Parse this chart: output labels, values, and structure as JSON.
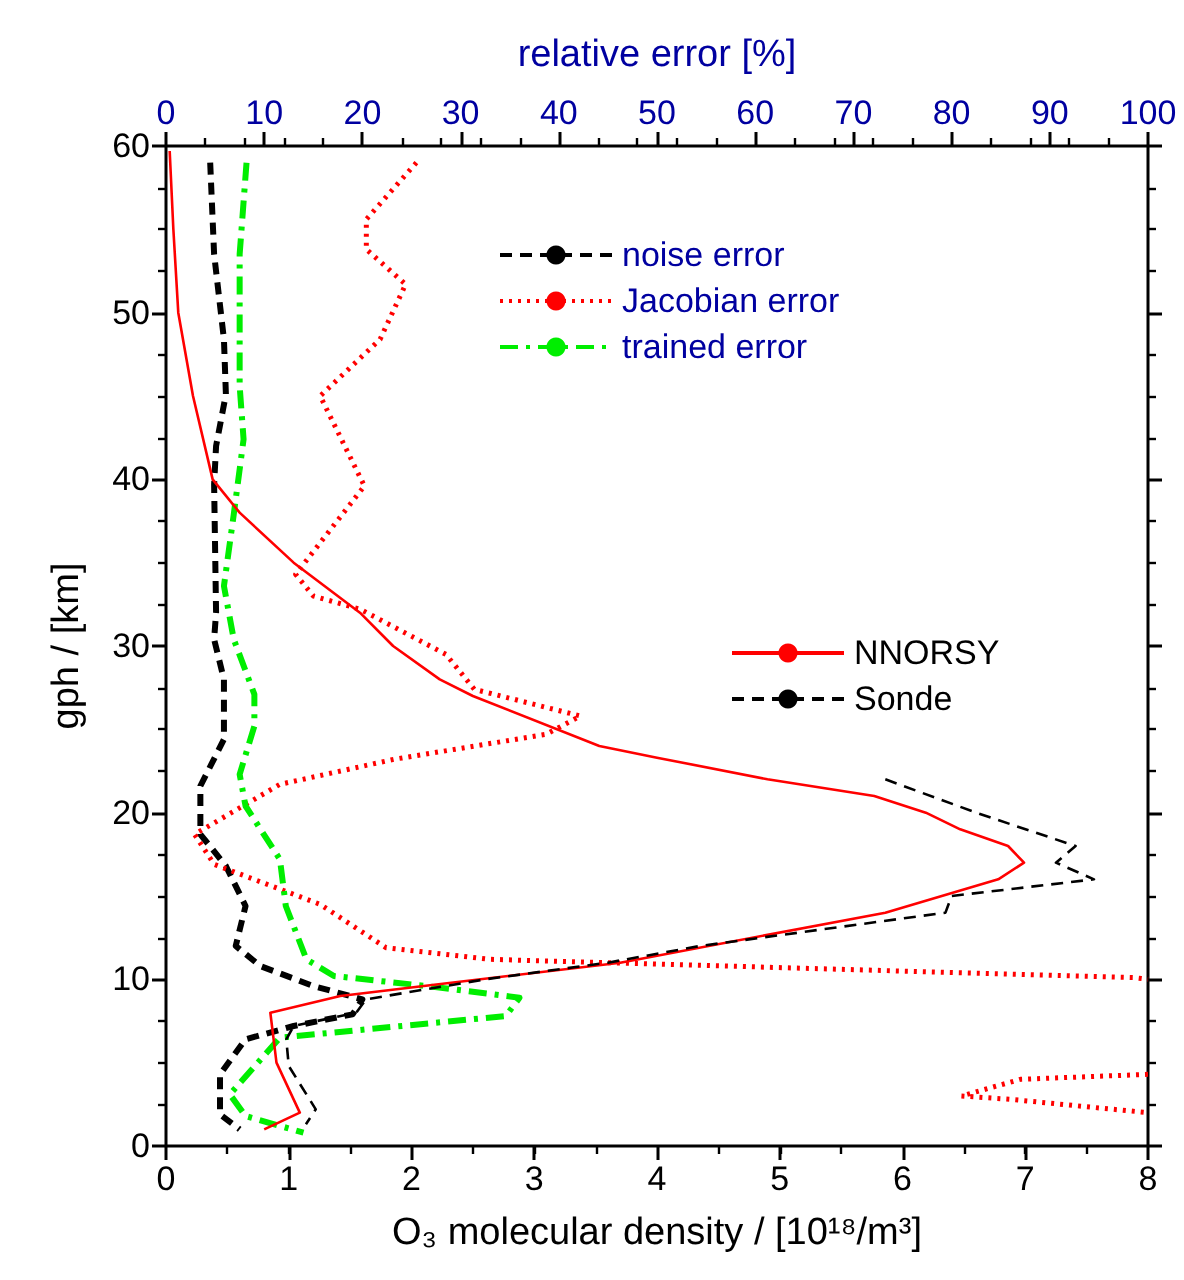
{
  "chart_data": {
    "type": "line",
    "xlabel": "O₃ molecular density / [10¹⁸/m³]",
    "x2label": "relative error [%]",
    "ylabel": "gph / [km]",
    "xlim": [
      0,
      8
    ],
    "xticks": [
      0,
      1,
      2,
      3,
      4,
      5,
      6,
      7,
      8
    ],
    "x2lim": [
      0,
      100
    ],
    "x2ticks": [
      0,
      10,
      20,
      30,
      40,
      50,
      60,
      70,
      80,
      90,
      100
    ],
    "ylim": [
      0,
      60
    ],
    "yticks": [
      0,
      10,
      20,
      30,
      40,
      50,
      60
    ],
    "grid": false,
    "legend": "right",
    "marker": "none",
    "series": [
      {
        "name": "noise error",
        "color": "#000000",
        "axis": "x2",
        "line_style": "dashed",
        "x": [
          4.5,
          4.9,
          5.9,
          6.1,
          5.1,
          4.9,
          5.1,
          4.9,
          5.9,
          5.9,
          3.5,
          3.5,
          6.1,
          8.1,
          7.1,
          9.6,
          15,
          20,
          19,
          13,
          8.1,
          5.5,
          5.5,
          7.5
        ],
        "values": [
          59,
          53.5,
          48.4,
          45.1,
          42,
          39.7,
          32,
          30.4,
          28,
          24.4,
          21.6,
          18.7,
          16.8,
          14.4,
          12,
          10.8,
          9.6,
          8.8,
          7.9,
          7.2,
          6.4,
          4.3,
          1.9,
          1
        ]
      },
      {
        "name": "Jacobian error",
        "color": "#ff0000",
        "axis": "x2",
        "line_style": "dotted",
        "x": [
          25.5,
          20.4,
          20.4,
          24.4,
          21.8,
          15.7,
          20.2,
          13.2,
          15,
          19.8,
          28.5,
          31.4,
          42.2,
          38.7,
          23.2,
          11.6,
          2.9,
          4.9,
          15.7,
          22.4,
          33,
          98.6,
          100,
          null,
          100,
          87,
          81,
          86,
          100
        ],
        "values": [
          59,
          55.6,
          53.8,
          51.7,
          48.4,
          45,
          39.6,
          34.3,
          33,
          32.2,
          29.5,
          27.4,
          25.8,
          24.7,
          23.2,
          21.7,
          18.7,
          16.9,
          14.5,
          11.9,
          11.2,
          10.1,
          10,
          null,
          4.3,
          4,
          3,
          2.8,
          2
        ]
      },
      {
        "name": "trained error",
        "color": "#00ee00",
        "axis": "x2",
        "line_style": "dashdot",
        "x": [
          8.2,
          7.5,
          7.5,
          7.9,
          6.9,
          5.9,
          6.9,
          9,
          9,
          7.5,
          8.1,
          11.6,
          12.2,
          14.3,
          17.1,
          26.5,
          36,
          34.6,
          11.6,
          6.5,
          8.1,
          14
        ],
        "values": [
          59,
          53.5,
          45.6,
          42.4,
          37.9,
          33.6,
          30.4,
          27.1,
          25.2,
          22.3,
          20.4,
          17.2,
          14.4,
          11.2,
          10.2,
          9.6,
          8.9,
          7.8,
          6.5,
          3.1,
          1.8,
          0.8
        ]
      },
      {
        "name": "NNORSY",
        "color": "#ff0000",
        "line_style": "solid",
        "x": [
          0.03,
          0.06,
          0.1,
          0.22,
          0.38,
          0.6,
          1.04,
          1.58,
          1.85,
          2.23,
          2.5,
          3.53,
          4,
          4.9,
          5.77,
          6.19,
          6.47,
          6.86,
          6.99,
          6.78,
          5.86,
          3.7,
          2.1,
          1.42,
          0.85,
          0.9,
          1.09,
          0.8
        ],
        "values": [
          59.7,
          55,
          50,
          45,
          40,
          38,
          35,
          32,
          30,
          28,
          27,
          24,
          23.3,
          22,
          21,
          20,
          19,
          18,
          17,
          16,
          14,
          11,
          9.6,
          9,
          8,
          5,
          2,
          1
        ]
      },
      {
        "name": "Sonde",
        "color": "#000000",
        "line_style": "dashed",
        "x": [
          5.86,
          6.6,
          7.41,
          7.25,
          7.56,
          6.4,
          6.35,
          4.35,
          3.6,
          2.6,
          1.63,
          1.55,
          1.04,
          0.98,
          1,
          1.22,
          1.14
        ],
        "values": [
          22,
          20,
          18,
          17,
          16,
          15,
          14,
          12,
          11,
          10,
          8.8,
          8,
          7.2,
          6.4,
          4.8,
          2.2,
          1.3
        ]
      }
    ]
  }
}
